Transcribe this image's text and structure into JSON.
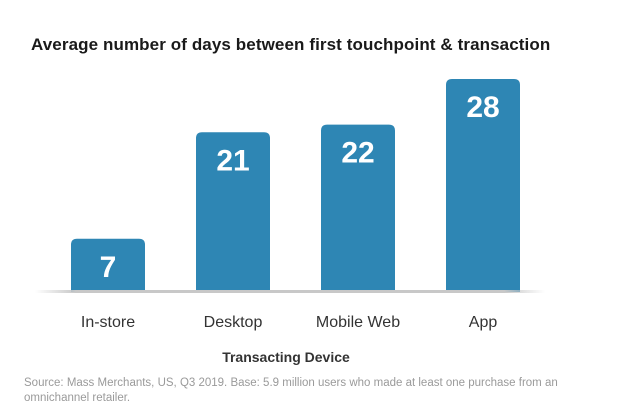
{
  "chart_data": {
    "type": "bar",
    "title": "Average number of days between first touchpoint & transaction",
    "xlabel": "Transacting Device",
    "ylabel": "",
    "categories": [
      "In-store",
      "Desktop",
      "Mobile Web",
      "App"
    ],
    "values": [
      7,
      21,
      22,
      28
    ],
    "data_labels": [
      "7",
      "21",
      "22",
      "28"
    ],
    "ylim": [
      0,
      28
    ],
    "grid": false,
    "legend": "none",
    "bar_color": "#2e86b4",
    "label_color": "#ffffff"
  },
  "source": "Source: Mass Merchants, US, Q3 2019. Base: 5.9 million users who made at least one purchase from an omnichannel retailer."
}
